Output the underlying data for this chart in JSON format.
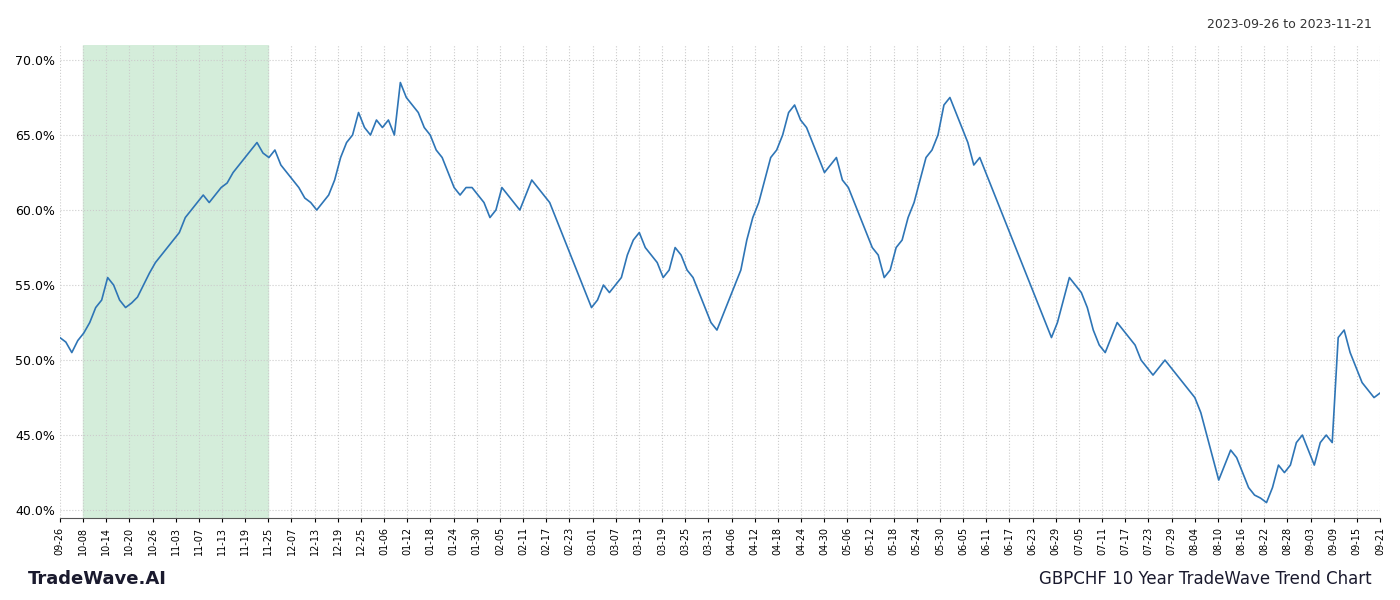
{
  "title_top_right": "2023-09-26 to 2023-11-21",
  "title_bottom_left": "TradeWave.AI",
  "title_bottom_right": "GBPCHF 10 Year TradeWave Trend Chart",
  "line_color": "#2e75b6",
  "highlight_color": "#d4edda",
  "background_color": "#ffffff",
  "grid_color": "#cccccc",
  "ylim": [
    39.5,
    71.0
  ],
  "yticks": [
    40.0,
    45.0,
    50.0,
    55.0,
    60.0,
    65.0,
    70.0
  ],
  "xtick_labels": [
    "09-26",
    "10-08",
    "10-14",
    "10-20",
    "10-26",
    "11-03",
    "11-07",
    "11-13",
    "11-19",
    "11-25",
    "12-07",
    "12-13",
    "12-19",
    "12-25",
    "01-06",
    "01-12",
    "01-18",
    "01-24",
    "01-30",
    "02-05",
    "02-11",
    "02-17",
    "02-23",
    "03-01",
    "03-07",
    "03-13",
    "03-19",
    "03-25",
    "03-31",
    "04-06",
    "04-12",
    "04-18",
    "04-24",
    "04-30",
    "05-06",
    "05-12",
    "05-18",
    "05-24",
    "05-30",
    "06-05",
    "06-11",
    "06-17",
    "06-23",
    "06-29",
    "07-05",
    "07-11",
    "07-17",
    "07-23",
    "07-29",
    "08-04",
    "08-10",
    "08-16",
    "08-22",
    "08-28",
    "09-03",
    "09-09",
    "09-15",
    "09-21"
  ],
  "highlight_start_label": "10-08",
  "highlight_end_label": "11-25",
  "values": [
    51.5,
    51.2,
    50.5,
    51.3,
    51.8,
    52.5,
    53.5,
    54.0,
    55.5,
    55.0,
    54.0,
    53.5,
    53.8,
    54.2,
    55.0,
    55.8,
    56.5,
    57.0,
    57.5,
    58.0,
    58.5,
    59.5,
    60.0,
    60.5,
    61.0,
    60.5,
    61.0,
    61.5,
    61.8,
    62.5,
    63.0,
    63.5,
    64.0,
    64.5,
    63.8,
    63.5,
    64.0,
    63.0,
    62.5,
    62.0,
    61.5,
    60.8,
    60.5,
    60.0,
    60.5,
    61.0,
    62.0,
    63.5,
    64.5,
    65.0,
    66.5,
    65.5,
    65.0,
    66.0,
    65.5,
    66.0,
    65.0,
    68.5,
    67.5,
    67.0,
    66.5,
    65.5,
    65.0,
    64.0,
    63.5,
    62.5,
    61.5,
    61.0,
    61.5,
    61.5,
    61.0,
    60.5,
    59.5,
    60.0,
    61.5,
    61.0,
    60.5,
    60.0,
    61.0,
    62.0,
    61.5,
    61.0,
    60.5,
    59.5,
    58.5,
    57.5,
    56.5,
    55.5,
    54.5,
    53.5,
    54.0,
    55.0,
    54.5,
    55.0,
    55.5,
    57.0,
    58.0,
    58.5,
    57.5,
    57.0,
    56.5,
    55.5,
    56.0,
    57.5,
    57.0,
    56.0,
    55.5,
    54.5,
    53.5,
    52.5,
    52.0,
    53.0,
    54.0,
    55.0,
    56.0,
    58.0,
    59.5,
    60.5,
    62.0,
    63.5,
    64.0,
    65.0,
    66.5,
    67.0,
    66.0,
    65.5,
    64.5,
    63.5,
    62.5,
    63.0,
    63.5,
    62.0,
    61.5,
    60.5,
    59.5,
    58.5,
    57.5,
    57.0,
    55.5,
    56.0,
    57.5,
    58.0,
    59.5,
    60.5,
    62.0,
    63.5,
    64.0,
    65.0,
    67.0,
    67.5,
    66.5,
    65.5,
    64.5,
    63.0,
    63.5,
    62.5,
    61.5,
    60.5,
    59.5,
    58.5,
    57.5,
    56.5,
    55.5,
    54.5,
    53.5,
    52.5,
    51.5,
    52.5,
    54.0,
    55.5,
    55.0,
    54.5,
    53.5,
    52.0,
    51.0,
    50.5,
    51.5,
    52.5,
    52.0,
    51.5,
    51.0,
    50.0,
    49.5,
    49.0,
    49.5,
    50.0,
    49.5,
    49.0,
    48.5,
    48.0,
    47.5,
    46.5,
    45.0,
    43.5,
    42.0,
    43.0,
    44.0,
    43.5,
    42.5,
    41.5,
    41.0,
    40.8,
    40.5,
    41.5,
    43.0,
    42.5,
    43.0,
    44.5,
    45.0,
    44.0,
    43.0,
    44.5,
    45.0,
    44.5,
    51.5,
    52.0,
    50.5,
    49.5,
    48.5,
    48.0,
    47.5,
    47.8
  ]
}
